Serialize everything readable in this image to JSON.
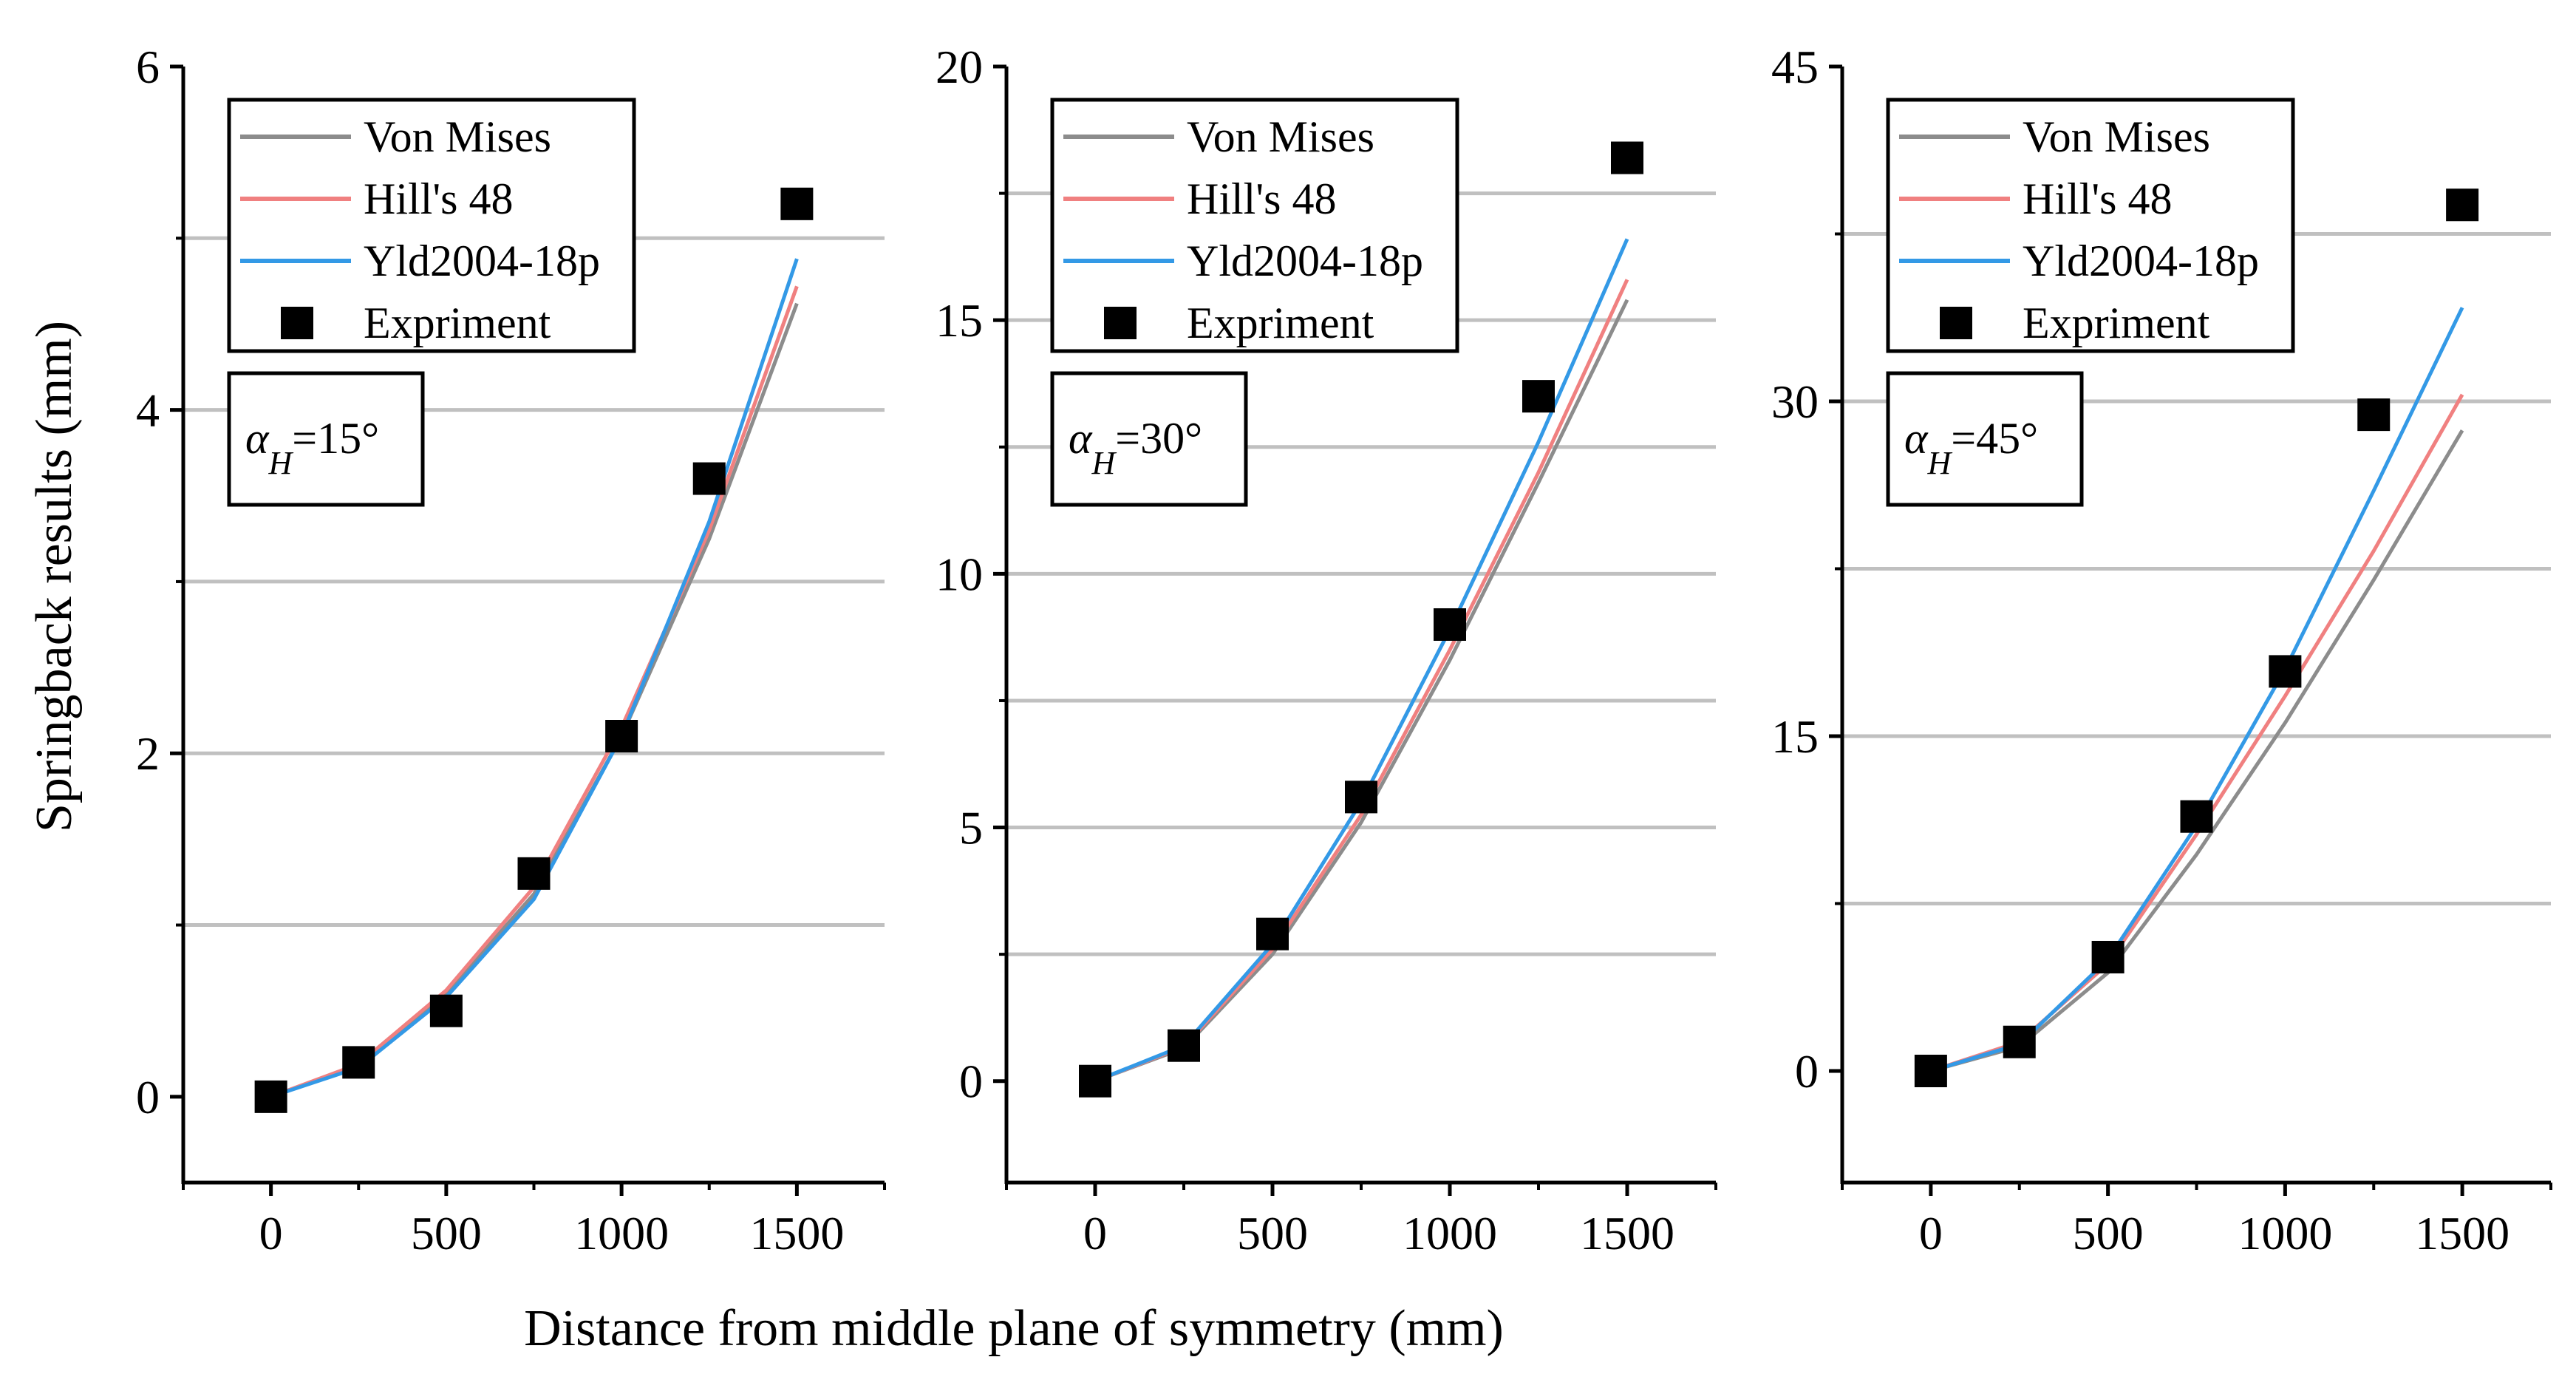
{
  "figure": {
    "ylabel": "Springback results (mm)",
    "xlabel": "Distance from middle plane of symmetry (mm)"
  },
  "legend_labels": [
    "Von Mises",
    "Hill's 48",
    "Yld2004-18p",
    "Expriment"
  ],
  "colors": {
    "von_mises": "#8c8c8c",
    "hill48": "#f08080",
    "yld2004": "#3399e6",
    "experiment": "#000000",
    "grid": "#c0c0c0"
  },
  "chart_data": [
    {
      "type": "line",
      "annotation": {
        "symbol": "α",
        "subscript": "H",
        "value": "=15°"
      },
      "xlim": [
        -250,
        1750
      ],
      "ylim": [
        -0.5,
        6
      ],
      "xticks": [
        0,
        500,
        1000,
        1500
      ],
      "xtick_labels": [
        "0",
        "500",
        "1000",
        "1500"
      ],
      "yticks": [
        0,
        2,
        4,
        6
      ],
      "ytick_labels": [
        "0",
        "2",
        "4",
        "6"
      ],
      "grid_y": [
        1,
        2,
        3,
        4,
        5
      ],
      "series": [
        {
          "name": "Von Mises",
          "x": [
            0,
            250,
            500,
            750,
            1000,
            1250,
            1500
          ],
          "y": [
            0,
            0.18,
            0.6,
            1.18,
            2.1,
            3.25,
            4.62
          ]
        },
        {
          "name": "Hill's 48",
          "x": [
            0,
            250,
            500,
            750,
            1000,
            1250,
            1500
          ],
          "y": [
            0,
            0.19,
            0.62,
            1.22,
            2.15,
            3.3,
            4.72
          ]
        },
        {
          "name": "Yld2004-18p",
          "x": [
            0,
            250,
            500,
            750,
            1000,
            1250,
            1500
          ],
          "y": [
            0,
            0.17,
            0.58,
            1.15,
            2.1,
            3.35,
            4.88
          ]
        }
      ],
      "experiment": {
        "name": "Expriment",
        "x": [
          0,
          250,
          500,
          750,
          1000,
          1250,
          1500
        ],
        "y": [
          0,
          0.2,
          0.5,
          1.3,
          2.1,
          3.6,
          5.2
        ]
      }
    },
    {
      "type": "line",
      "annotation": {
        "symbol": "α",
        "subscript": "H",
        "value": "=30°"
      },
      "xlim": [
        -250,
        1750
      ],
      "ylim": [
        -2,
        20
      ],
      "xticks": [
        0,
        500,
        1000,
        1500
      ],
      "xtick_labels": [
        "0",
        "500",
        "1000",
        "1500"
      ],
      "yticks": [
        0,
        5,
        10,
        15,
        20
      ],
      "ytick_labels": [
        "0",
        "5",
        "10",
        "15",
        "20"
      ],
      "grid_y": [
        2.5,
        5,
        7.5,
        10,
        12.5,
        15,
        17.5
      ],
      "series": [
        {
          "name": "Von Mises",
          "x": [
            0,
            250,
            500,
            750,
            1000,
            1250,
            1500
          ],
          "y": [
            0,
            0.65,
            2.5,
            5.1,
            8.3,
            11.8,
            15.4
          ]
        },
        {
          "name": "Hill's 48",
          "x": [
            0,
            250,
            500,
            750,
            1000,
            1250,
            1500
          ],
          "y": [
            0,
            0.68,
            2.6,
            5.25,
            8.5,
            12.0,
            15.8
          ]
        },
        {
          "name": "Yld2004-18p",
          "x": [
            0,
            250,
            500,
            750,
            1000,
            1250,
            1500
          ],
          "y": [
            0,
            0.7,
            2.7,
            5.5,
            8.9,
            12.6,
            16.6
          ]
        }
      ],
      "experiment": {
        "name": "Expriment",
        "x": [
          0,
          250,
          500,
          750,
          1000,
          1250,
          1500
        ],
        "y": [
          0,
          0.7,
          2.9,
          5.6,
          9.0,
          13.5,
          18.2
        ]
      }
    },
    {
      "type": "line",
      "annotation": {
        "symbol": "α",
        "subscript": "H",
        "value": "=45°"
      },
      "xlim": [
        -250,
        1750
      ],
      "ylim": [
        -5,
        45
      ],
      "xticks": [
        0,
        500,
        1000,
        1500
      ],
      "xtick_labels": [
        "0",
        "500",
        "1000",
        "1500"
      ],
      "yticks": [
        0,
        15,
        30,
        45
      ],
      "ytick_labels": [
        "0",
        "15",
        "30",
        "45"
      ],
      "grid_y": [
        7.5,
        15,
        22.5,
        30,
        37.5
      ],
      "series": [
        {
          "name": "Von Mises",
          "x": [
            0,
            250,
            500,
            750,
            1000,
            1250,
            1500
          ],
          "y": [
            0,
            1.1,
            4.4,
            9.7,
            15.6,
            22.0,
            28.7
          ]
        },
        {
          "name": "Hill's 48",
          "x": [
            0,
            250,
            500,
            750,
            1000,
            1250,
            1500
          ],
          "y": [
            0,
            1.3,
            4.8,
            10.6,
            16.8,
            23.3,
            30.3
          ]
        },
        {
          "name": "Yld2004-18p",
          "x": [
            0,
            250,
            500,
            750,
            1000,
            1250,
            1500
          ],
          "y": [
            0,
            1.2,
            5.0,
            11.0,
            18.0,
            26.0,
            34.2
          ]
        }
      ],
      "experiment": {
        "name": "Expriment",
        "x": [
          0,
          250,
          500,
          750,
          1000,
          1250,
          1500
        ],
        "y": [
          0,
          1.3,
          5.1,
          11.4,
          17.9,
          29.4,
          38.8
        ]
      }
    }
  ]
}
